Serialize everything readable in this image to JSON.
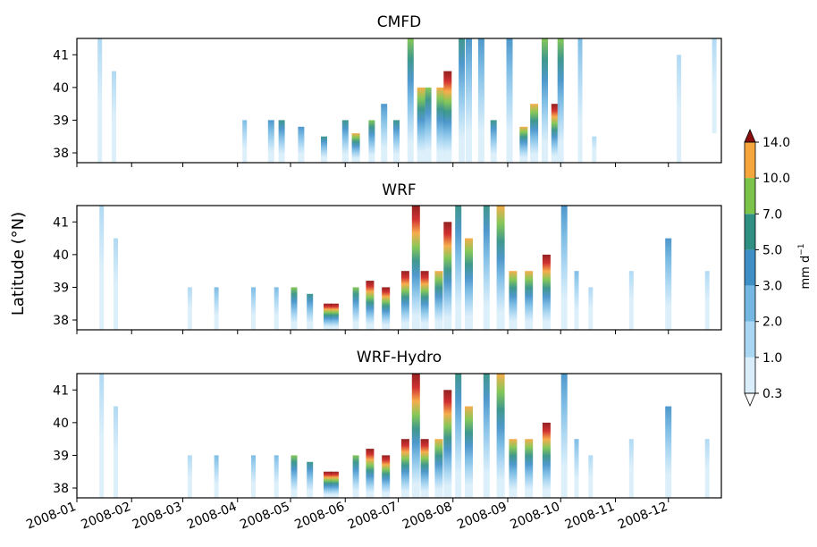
{
  "chart_data": {
    "type": "heatmap",
    "ylabel": "Latitude (°N)",
    "colorbar": {
      "label": "mm d$^{-1}$",
      "label_text": "mm d",
      "label_sup": "−1",
      "levels": [
        0.3,
        1.0,
        2.0,
        3.0,
        5.0,
        7.0,
        10.0,
        14.0
      ],
      "tick_labels": [
        "0.3",
        "1.0",
        "2.0",
        "3.0",
        "5.0",
        "7.0",
        "10.0",
        "14.0"
      ],
      "colors": [
        "#d9eefa",
        "#a9d6f2",
        "#73b7e2",
        "#3f8fc7",
        "#2f8f83",
        "#7cc34a",
        "#f6a63d",
        "#cc1f1f"
      ],
      "extend": "both",
      "over_color": "#8b0e0e",
      "under_color": "#ffffff"
    },
    "x_axis": {
      "start": "2008-01-01",
      "end": "2008-12-31",
      "ticks": [
        "2008-01",
        "2008-02",
        "2008-03",
        "2008-04",
        "2008-05",
        "2008-06",
        "2008-07",
        "2008-08",
        "2008-09",
        "2008-10",
        "2008-11",
        "2008-12"
      ]
    },
    "y_axis": {
      "ylim": [
        37.7,
        41.5
      ],
      "ticks": [
        38,
        39,
        40,
        41
      ]
    },
    "panels": [
      {
        "title": "CMFD",
        "events": [
          {
            "date": "2008-01-14",
            "lat": [
              37.7,
              41.5
            ],
            "peak": 1.2
          },
          {
            "date": "2008-01-22",
            "lat": [
              37.7,
              40.5
            ],
            "peak": 1.1
          },
          {
            "date": "2008-04-05",
            "lat": [
              37.7,
              39.0
            ],
            "peak": 2.2
          },
          {
            "date": "2008-04-20",
            "lat": [
              37.7,
              39.0
            ],
            "peak": 3.5
          },
          {
            "date": "2008-04-26",
            "lat": [
              37.7,
              39.0
            ],
            "peak": 5.5
          },
          {
            "date": "2008-05-07",
            "lat": [
              37.7,
              38.8
            ],
            "peak": 4.0
          },
          {
            "date": "2008-05-20",
            "lat": [
              37.7,
              38.5
            ],
            "peak": 6.0
          },
          {
            "date": "2008-06-01",
            "lat": [
              37.7,
              39.0
            ],
            "peak": 5.0
          },
          {
            "date": "2008-06-07",
            "lat": [
              37.7,
              38.6
            ],
            "peak": 11.0
          },
          {
            "date": "2008-06-16",
            "lat": [
              37.7,
              39.0
            ],
            "peak": 7.0
          },
          {
            "date": "2008-06-23",
            "lat": [
              37.7,
              39.5
            ],
            "peak": 4.5
          },
          {
            "date": "2008-06-30",
            "lat": [
              37.7,
              39.0
            ],
            "peak": 6.5
          },
          {
            "date": "2008-07-08",
            "lat": [
              37.7,
              41.5
            ],
            "peak": 8.0
          },
          {
            "date": "2008-07-14",
            "lat": [
              37.7,
              40.0
            ],
            "peak": 13.0
          },
          {
            "date": "2008-07-18",
            "lat": [
              37.7,
              40.0
            ],
            "peak": 9.0
          },
          {
            "date": "2008-07-25",
            "lat": [
              37.7,
              40.0
            ],
            "peak": 12.0
          },
          {
            "date": "2008-07-29",
            "lat": [
              37.7,
              40.5
            ],
            "peak": 16.0
          },
          {
            "date": "2008-08-06",
            "lat": [
              37.7,
              41.5
            ],
            "peak": 6.0
          },
          {
            "date": "2008-08-10",
            "lat": [
              37.7,
              41.5
            ],
            "peak": 3.5
          },
          {
            "date": "2008-08-17",
            "lat": [
              37.7,
              41.5
            ],
            "peak": 4.0
          },
          {
            "date": "2008-08-24",
            "lat": [
              37.7,
              39.0
            ],
            "peak": 6.0
          },
          {
            "date": "2008-09-02",
            "lat": [
              37.7,
              41.5
            ],
            "peak": 4.0
          },
          {
            "date": "2008-09-10",
            "lat": [
              37.7,
              38.8
            ],
            "peak": 11.0
          },
          {
            "date": "2008-09-16",
            "lat": [
              37.7,
              39.5
            ],
            "peak": 12.0
          },
          {
            "date": "2008-09-22",
            "lat": [
              37.7,
              41.5
            ],
            "peak": 7.0
          },
          {
            "date": "2008-09-28",
            "lat": [
              37.7,
              39.5
            ],
            "peak": 16.0
          },
          {
            "date": "2008-10-01",
            "lat": [
              37.7,
              41.5
            ],
            "peak": 8.0
          },
          {
            "date": "2008-10-12",
            "lat": [
              37.7,
              41.5
            ],
            "peak": 2.2
          },
          {
            "date": "2008-10-20",
            "lat": [
              37.7,
              38.5
            ],
            "peak": 1.2
          },
          {
            "date": "2008-12-07",
            "lat": [
              37.7,
              41.0
            ],
            "peak": 1.0
          },
          {
            "date": "2008-12-27",
            "lat": [
              38.6,
              41.5
            ],
            "peak": 1.2
          }
        ]
      },
      {
        "title": "WRF",
        "events": [
          {
            "date": "2008-01-15",
            "lat": [
              37.7,
              41.5
            ],
            "peak": 1.3
          },
          {
            "date": "2008-01-23",
            "lat": [
              37.7,
              40.5
            ],
            "peak": 1.1
          },
          {
            "date": "2008-03-05",
            "lat": [
              37.7,
              39.0
            ],
            "peak": 1.5
          },
          {
            "date": "2008-03-20",
            "lat": [
              37.7,
              39.0
            ],
            "peak": 2.5
          },
          {
            "date": "2008-04-10",
            "lat": [
              37.7,
              39.0
            ],
            "peak": 2.2
          },
          {
            "date": "2008-04-23",
            "lat": [
              37.7,
              39.0
            ],
            "peak": 2.5
          },
          {
            "date": "2008-05-03",
            "lat": [
              37.7,
              39.0
            ],
            "peak": 9.0
          },
          {
            "date": "2008-05-12",
            "lat": [
              37.7,
              38.8
            ],
            "peak": 6.0
          },
          {
            "date": "2008-05-22",
            "lat": [
              37.7,
              38.5
            ],
            "peak": 15.0
          },
          {
            "date": "2008-05-26",
            "lat": [
              37.7,
              38.5
            ],
            "peak": 15.0
          },
          {
            "date": "2008-06-07",
            "lat": [
              37.7,
              39.0
            ],
            "peak": 7.0
          },
          {
            "date": "2008-06-15",
            "lat": [
              37.7,
              39.2
            ],
            "peak": 15.0
          },
          {
            "date": "2008-06-24",
            "lat": [
              37.7,
              39.0
            ],
            "peak": 15.0
          },
          {
            "date": "2008-07-05",
            "lat": [
              37.7,
              39.5
            ],
            "peak": 15.0
          },
          {
            "date": "2008-07-11",
            "lat": [
              37.7,
              41.5
            ],
            "peak": 16.0
          },
          {
            "date": "2008-07-16",
            "lat": [
              37.7,
              39.5
            ],
            "peak": 15.0
          },
          {
            "date": "2008-07-24",
            "lat": [
              37.7,
              39.5
            ],
            "peak": 13.0
          },
          {
            "date": "2008-07-29",
            "lat": [
              37.7,
              41.0
            ],
            "peak": 16.0
          },
          {
            "date": "2008-08-04",
            "lat": [
              37.7,
              41.5
            ],
            "peak": 5.0
          },
          {
            "date": "2008-08-10",
            "lat": [
              37.7,
              40.5
            ],
            "peak": 13.0
          },
          {
            "date": "2008-08-20",
            "lat": [
              37.7,
              41.5
            ],
            "peak": 6.0
          },
          {
            "date": "2008-08-28",
            "lat": [
              37.7,
              41.5
            ],
            "peak": 10.5
          },
          {
            "date": "2008-09-04",
            "lat": [
              37.7,
              39.5
            ],
            "peak": 12.0
          },
          {
            "date": "2008-09-13",
            "lat": [
              37.7,
              39.5
            ],
            "peak": 10.5
          },
          {
            "date": "2008-09-23",
            "lat": [
              37.7,
              40.0
            ],
            "peak": 16.0
          },
          {
            "date": "2008-10-03",
            "lat": [
              37.7,
              41.5
            ],
            "peak": 3.5
          },
          {
            "date": "2008-10-10",
            "lat": [
              37.7,
              39.5
            ],
            "peak": 2.5
          },
          {
            "date": "2008-10-18",
            "lat": [
              37.7,
              39.0
            ],
            "peak": 1.5
          },
          {
            "date": "2008-11-10",
            "lat": [
              37.7,
              39.5
            ],
            "peak": 1.2
          },
          {
            "date": "2008-12-01",
            "lat": [
              37.7,
              40.5
            ],
            "peak": 3.5
          },
          {
            "date": "2008-12-23",
            "lat": [
              37.7,
              39.5
            ],
            "peak": 1.3
          }
        ]
      },
      {
        "title": "WRF-Hydro",
        "events": [
          {
            "date": "2008-01-15",
            "lat": [
              37.7,
              41.5
            ],
            "peak": 1.3
          },
          {
            "date": "2008-01-23",
            "lat": [
              37.7,
              40.5
            ],
            "peak": 1.1
          },
          {
            "date": "2008-03-05",
            "lat": [
              37.7,
              39.0
            ],
            "peak": 1.5
          },
          {
            "date": "2008-03-20",
            "lat": [
              37.7,
              39.0
            ],
            "peak": 2.5
          },
          {
            "date": "2008-04-10",
            "lat": [
              37.7,
              39.0
            ],
            "peak": 2.2
          },
          {
            "date": "2008-04-23",
            "lat": [
              37.7,
              39.0
            ],
            "peak": 2.5
          },
          {
            "date": "2008-05-03",
            "lat": [
              37.7,
              39.0
            ],
            "peak": 9.0
          },
          {
            "date": "2008-05-12",
            "lat": [
              37.7,
              38.8
            ],
            "peak": 6.0
          },
          {
            "date": "2008-05-22",
            "lat": [
              37.7,
              38.5
            ],
            "peak": 15.0
          },
          {
            "date": "2008-05-26",
            "lat": [
              37.7,
              38.5
            ],
            "peak": 15.0
          },
          {
            "date": "2008-06-07",
            "lat": [
              37.7,
              39.0
            ],
            "peak": 7.0
          },
          {
            "date": "2008-06-15",
            "lat": [
              37.7,
              39.2
            ],
            "peak": 15.0
          },
          {
            "date": "2008-06-24",
            "lat": [
              37.7,
              39.0
            ],
            "peak": 15.0
          },
          {
            "date": "2008-07-05",
            "lat": [
              37.7,
              39.5
            ],
            "peak": 15.0
          },
          {
            "date": "2008-07-11",
            "lat": [
              37.7,
              41.5
            ],
            "peak": 16.0
          },
          {
            "date": "2008-07-16",
            "lat": [
              37.7,
              39.5
            ],
            "peak": 15.0
          },
          {
            "date": "2008-07-24",
            "lat": [
              37.7,
              39.5
            ],
            "peak": 13.0
          },
          {
            "date": "2008-07-29",
            "lat": [
              37.7,
              41.0
            ],
            "peak": 16.0
          },
          {
            "date": "2008-08-04",
            "lat": [
              37.7,
              41.5
            ],
            "peak": 5.0
          },
          {
            "date": "2008-08-10",
            "lat": [
              37.7,
              40.5
            ],
            "peak": 13.0
          },
          {
            "date": "2008-08-20",
            "lat": [
              37.7,
              41.5
            ],
            "peak": 6.0
          },
          {
            "date": "2008-08-28",
            "lat": [
              37.7,
              41.5
            ],
            "peak": 10.5
          },
          {
            "date": "2008-09-04",
            "lat": [
              37.7,
              39.5
            ],
            "peak": 12.0
          },
          {
            "date": "2008-09-13",
            "lat": [
              37.7,
              39.5
            ],
            "peak": 10.5
          },
          {
            "date": "2008-09-23",
            "lat": [
              37.7,
              40.0
            ],
            "peak": 16.0
          },
          {
            "date": "2008-10-03",
            "lat": [
              37.7,
              41.5
            ],
            "peak": 3.5
          },
          {
            "date": "2008-10-10",
            "lat": [
              37.7,
              39.5
            ],
            "peak": 2.5
          },
          {
            "date": "2008-10-18",
            "lat": [
              37.7,
              39.0
            ],
            "peak": 1.5
          },
          {
            "date": "2008-11-10",
            "lat": [
              37.7,
              39.5
            ],
            "peak": 1.2
          },
          {
            "date": "2008-12-01",
            "lat": [
              37.7,
              40.5
            ],
            "peak": 3.5
          },
          {
            "date": "2008-12-23",
            "lat": [
              37.7,
              39.5
            ],
            "peak": 1.3
          }
        ]
      }
    ]
  }
}
